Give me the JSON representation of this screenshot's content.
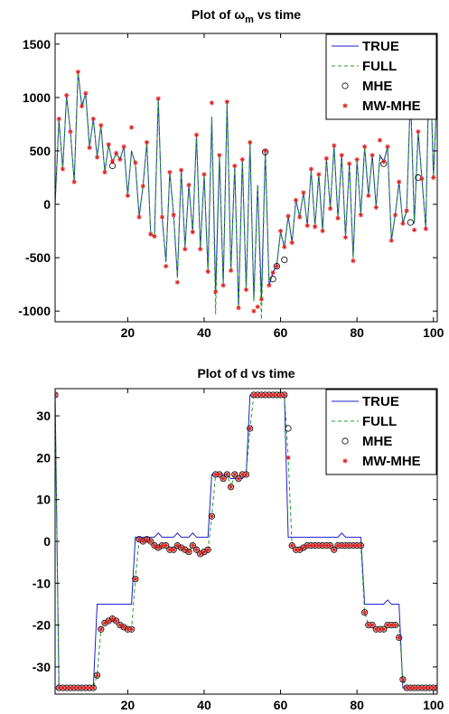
{
  "chart_data": [
    {
      "type": "line",
      "title": "Plot of ω",
      "title_sub": "m",
      "title_rest": " vs time",
      "xlabel": "",
      "ylabel": "",
      "xlim": [
        1,
        101
      ],
      "ylim": [
        -1100,
        1600
      ],
      "xticks": [
        20,
        40,
        60,
        80,
        100
      ],
      "yticks": [
        -1000,
        -500,
        0,
        500,
        1000,
        1500
      ],
      "grid": false,
      "legend_position": "top-right",
      "x": [
        1,
        2,
        3,
        4,
        5,
        6,
        7,
        8,
        9,
        10,
        11,
        12,
        13,
        14,
        15,
        16,
        17,
        18,
        19,
        20,
        21,
        22,
        23,
        24,
        25,
        26,
        27,
        28,
        29,
        30,
        31,
        32,
        33,
        34,
        35,
        36,
        37,
        38,
        39,
        40,
        41,
        42,
        43,
        44,
        45,
        46,
        47,
        48,
        49,
        50,
        51,
        52,
        53,
        54,
        55,
        56,
        57,
        58,
        59,
        60,
        61,
        62,
        63,
        64,
        65,
        66,
        67,
        68,
        69,
        70,
        71,
        72,
        73,
        74,
        75,
        76,
        77,
        78,
        79,
        80,
        81,
        82,
        83,
        84,
        85,
        86,
        87,
        88,
        89,
        90,
        91,
        92,
        93,
        94,
        95,
        96,
        97,
        98,
        99,
        100,
        101
      ],
      "series": [
        {
          "name": "TRUE",
          "style": "line",
          "color": "#1f1fd0",
          "values": [
            0,
            800,
            330,
            1020,
            680,
            210,
            1240,
            920,
            1040,
            530,
            800,
            440,
            740,
            300,
            560,
            390,
            480,
            420,
            540,
            80,
            500,
            380,
            -120,
            170,
            580,
            -270,
            -300,
            990,
            -120,
            -540,
            300,
            -90,
            -680,
            320,
            -400,
            180,
            -260,
            650,
            -420,
            280,
            -630,
            820,
            -830,
            460,
            -760,
            960,
            -620,
            360,
            -970,
            420,
            -800,
            580,
            -900,
            180,
            -890,
            500,
            -760,
            -640,
            -570,
            -260,
            -400,
            -110,
            -360,
            40,
            -120,
            110,
            -200,
            320,
            -210,
            280,
            -250,
            430,
            -40,
            550,
            -130,
            460,
            -310,
            380,
            -500,
            420,
            -100,
            540,
            80,
            460,
            -30,
            460,
            400,
            540,
            -340,
            -100,
            210,
            -180,
            -60,
            1050,
            -180,
            680,
            240,
            -230,
            1550,
            250,
            1100
          ]
        },
        {
          "name": "FULL",
          "style": "dashed",
          "color": "#22a022",
          "values": [
            0,
            780,
            340,
            1000,
            690,
            200,
            1230,
            900,
            1030,
            540,
            790,
            450,
            730,
            310,
            550,
            400,
            470,
            430,
            530,
            90,
            490,
            390,
            -110,
            180,
            570,
            -260,
            -310,
            980,
            -110,
            -530,
            290,
            -80,
            -690,
            310,
            -410,
            170,
            -250,
            640,
            -410,
            270,
            -640,
            810,
            -1030,
            450,
            -770,
            950,
            -630,
            350,
            -980,
            410,
            -790,
            570,
            -910,
            170,
            -1080,
            490,
            -750,
            -650,
            -560,
            -250,
            -410,
            -100,
            -350,
            50,
            -110,
            100,
            -190,
            310,
            -200,
            270,
            -240,
            420,
            -30,
            540,
            -120,
            450,
            -300,
            370,
            -510,
            410,
            -90,
            530,
            90,
            450,
            -20,
            450,
            390,
            530,
            -330,
            -90,
            200,
            -170,
            -50,
            1040,
            -170,
            670,
            230,
            -220,
            1540,
            240,
            1090
          ]
        },
        {
          "name": "MHE",
          "style": "marker-circle",
          "color": "#000000",
          "values": [
            null,
            null,
            null,
            null,
            null,
            null,
            null,
            null,
            null,
            null,
            null,
            null,
            null,
            null,
            null,
            360,
            null,
            null,
            null,
            null,
            null,
            null,
            null,
            null,
            null,
            null,
            null,
            null,
            null,
            null,
            null,
            null,
            null,
            null,
            null,
            null,
            null,
            null,
            null,
            null,
            null,
            null,
            null,
            null,
            null,
            null,
            null,
            null,
            null,
            null,
            null,
            null,
            null,
            null,
            null,
            490,
            null,
            -700,
            -580,
            null,
            -520,
            null,
            null,
            null,
            null,
            null,
            null,
            null,
            null,
            null,
            null,
            null,
            null,
            null,
            null,
            null,
            null,
            null,
            null,
            null,
            null,
            null,
            null,
            null,
            null,
            null,
            380,
            null,
            null,
            null,
            null,
            null,
            null,
            -170,
            null,
            250,
            null,
            null,
            null,
            1090,
            null
          ]
        },
        {
          "name": "MW-MHE",
          "style": "marker-star",
          "color": "#e02020",
          "values": [
            null,
            800,
            330,
            1020,
            680,
            210,
            1240,
            920,
            1040,
            530,
            800,
            440,
            740,
            300,
            560,
            400,
            480,
            420,
            540,
            80,
            720,
            390,
            -120,
            170,
            580,
            -280,
            -300,
            990,
            -120,
            -580,
            300,
            -100,
            -730,
            320,
            -420,
            180,
            -260,
            650,
            -420,
            280,
            -630,
            950,
            -820,
            460,
            -760,
            960,
            -620,
            360,
            -970,
            420,
            -800,
            580,
            -1000,
            -960,
            -890,
            500,
            -760,
            -640,
            -580,
            -250,
            -400,
            -110,
            -360,
            40,
            -120,
            110,
            -200,
            330,
            -210,
            280,
            -250,
            430,
            -40,
            550,
            -130,
            460,
            -310,
            380,
            -530,
            420,
            -100,
            540,
            80,
            460,
            -30,
            600,
            400,
            540,
            -340,
            -100,
            210,
            -180,
            -60,
            1050,
            -240,
            680,
            240,
            -230,
            1550,
            250,
            1100
          ]
        }
      ]
    },
    {
      "type": "line",
      "title": "Plot of d vs time",
      "xlabel": "",
      "ylabel": "",
      "xlim": [
        1,
        101
      ],
      "ylim": [
        -36.5,
        36.5
      ],
      "xticks": [
        20,
        40,
        60,
        80,
        100
      ],
      "yticks": [
        -30,
        -20,
        -10,
        0,
        10,
        20,
        30
      ],
      "grid": false,
      "legend_position": "top-right",
      "x": [
        1,
        2,
        3,
        4,
        5,
        6,
        7,
        8,
        9,
        10,
        11,
        12,
        13,
        14,
        15,
        16,
        17,
        18,
        19,
        20,
        21,
        22,
        23,
        24,
        25,
        26,
        27,
        28,
        29,
        30,
        31,
        32,
        33,
        34,
        35,
        36,
        37,
        38,
        39,
        40,
        41,
        42,
        43,
        44,
        45,
        46,
        47,
        48,
        49,
        50,
        51,
        52,
        53,
        54,
        55,
        56,
        57,
        58,
        59,
        60,
        61,
        62,
        63,
        64,
        65,
        66,
        67,
        68,
        69,
        70,
        71,
        72,
        73,
        74,
        75,
        76,
        77,
        78,
        79,
        80,
        81,
        82,
        83,
        84,
        85,
        86,
        87,
        88,
        89,
        90,
        91,
        92,
        93,
        94,
        95,
        96,
        97,
        98,
        99,
        100,
        101
      ],
      "series": [
        {
          "name": "TRUE",
          "style": "line",
          "color": "#1f1fd0",
          "values": [
            35,
            -35,
            -35,
            -35,
            -35,
            -35,
            -35,
            -35,
            -35,
            -35,
            -35,
            -15,
            -15,
            -15,
            -15,
            -15,
            -15,
            -15,
            -15,
            -15,
            -15,
            1,
            1,
            1,
            1,
            1,
            1,
            2,
            1,
            1,
            1,
            1,
            2,
            1,
            1,
            1,
            2,
            1,
            1,
            1,
            1,
            16,
            16,
            16,
            16,
            16,
            15,
            15,
            15,
            15,
            16,
            35,
            35,
            35,
            35,
            35,
            35,
            35,
            35,
            35,
            35,
            1,
            1,
            1,
            1,
            1,
            1,
            1,
            1,
            1,
            1,
            1,
            1,
            1,
            1,
            2,
            1,
            1,
            1,
            1,
            1,
            -15,
            -15,
            -15,
            -15,
            -15,
            -15,
            -14,
            -15,
            -15,
            -15,
            -35,
            -35,
            -35,
            -35,
            -35,
            -35,
            -35,
            -35,
            -35,
            -35
          ]
        },
        {
          "name": "FULL",
          "style": "dashed",
          "color": "#22a022",
          "values": [
            35,
            -35,
            -35,
            -35,
            -35,
            -35,
            -35,
            -35,
            -35,
            -35,
            -35,
            -32,
            -21,
            -19.5,
            -19,
            -18.5,
            -19,
            -20,
            -20.5,
            -21,
            -21,
            -9,
            0.5,
            0,
            0,
            0,
            -1,
            -1.5,
            -1,
            -1,
            -2,
            -2,
            -1,
            -1.5,
            -2,
            -2.5,
            -1,
            -2,
            -3,
            -2.5,
            -2,
            6,
            16,
            16,
            15,
            16,
            13,
            16,
            15,
            16,
            16,
            27,
            35,
            35,
            35,
            35,
            35,
            35,
            35,
            35,
            35,
            20,
            -1,
            -2,
            -2,
            -1.5,
            -1,
            -1,
            -1,
            -1,
            -1,
            -1,
            -1,
            -2,
            -1,
            -1,
            -1,
            -1,
            -1,
            -1,
            -1,
            -17,
            -20,
            -20,
            -21,
            -21,
            -21,
            -20,
            -20,
            -20,
            -20,
            -33,
            -35,
            -35,
            -35,
            -35,
            -35,
            -35,
            -35,
            -35,
            -35
          ]
        },
        {
          "name": "MHE",
          "style": "marker-circle",
          "color": "#000000",
          "values": [
            35,
            -35,
            -35,
            -35,
            -35,
            -35,
            -35,
            -35,
            -35,
            -35,
            -35,
            -32,
            -21,
            -19.5,
            -19,
            -18.5,
            -19,
            -20,
            -20.5,
            -21,
            -21,
            -9,
            0.5,
            0,
            0.5,
            0,
            -1,
            -1.5,
            -1,
            -1,
            -2,
            -2,
            -1,
            -1.5,
            -2,
            -2.5,
            -1,
            -2,
            -3,
            -2.5,
            -2,
            6,
            16,
            16,
            15,
            16,
            13,
            16,
            15,
            16,
            16,
            27,
            35,
            35,
            35,
            35,
            35,
            35,
            35,
            35,
            35,
            27,
            -1,
            -2,
            -2,
            -1.5,
            -1,
            -1,
            -1,
            -1,
            -1,
            -1,
            -1,
            -2,
            -1,
            -1,
            -1,
            -1,
            -1,
            -1,
            -1,
            -17,
            -20,
            -20,
            -21,
            -21,
            -21,
            -20,
            -20,
            -20,
            -23,
            -33,
            -35,
            -35,
            -35,
            -35,
            -35,
            -35,
            -35,
            -35,
            -35
          ]
        },
        {
          "name": "MW-MHE",
          "style": "marker-star",
          "color": "#e02020",
          "values": [
            35,
            -35,
            -35,
            -35,
            -35,
            -35,
            -35,
            -35,
            -35,
            -35,
            -35,
            -32,
            -21,
            -19.5,
            -19,
            -18.5,
            -19,
            -20,
            -20.5,
            -21,
            -21,
            -9,
            0.5,
            0,
            0.5,
            0,
            -1,
            -1.5,
            -1,
            -1,
            -2,
            -2,
            -1,
            -1.5,
            -2,
            -2.5,
            -1,
            -2,
            -3,
            -2.5,
            -2,
            6,
            16,
            16,
            15,
            16,
            13,
            16,
            15,
            16,
            16,
            27,
            35,
            35,
            35,
            35,
            35,
            35,
            35,
            35,
            35,
            20,
            -1,
            -2,
            -2,
            -1.5,
            -1,
            -1,
            -1,
            -1,
            -1,
            -1,
            -1,
            -2,
            -1,
            -1,
            -1,
            -1,
            -1,
            -1,
            -1,
            -17,
            -20,
            -20,
            -21,
            -21,
            -21,
            -20,
            -20,
            -20,
            -23,
            -33,
            -35,
            -35,
            -35,
            -35,
            -35,
            -35,
            -35,
            -35,
            -35
          ]
        }
      ]
    }
  ]
}
